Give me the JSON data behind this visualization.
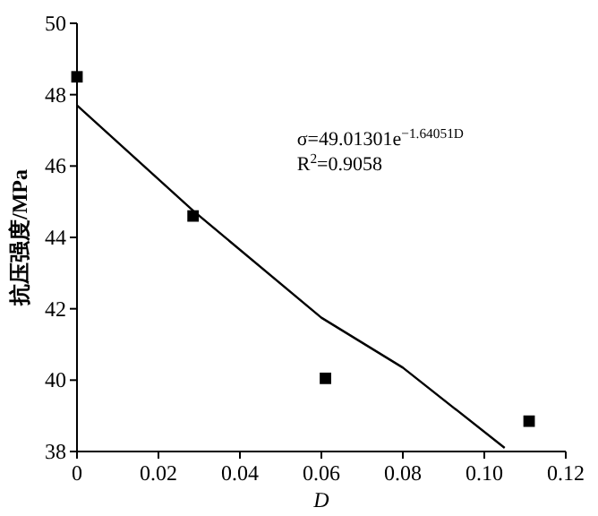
{
  "chart_data": {
    "type": "scatter",
    "xlabel": "D",
    "ylabel": "抗压强度/MPa",
    "xlim": [
      0,
      0.12
    ],
    "ylim": [
      38,
      50
    ],
    "xticks": [
      0,
      {
        "value": 0.02,
        "label": "0.02"
      },
      {
        "value": 0.04,
        "label": "0.04"
      },
      {
        "value": 0.06,
        "label": "0.06"
      },
      {
        "value": 0.08,
        "label": "0.08"
      },
      {
        "value": 0.1,
        "label": "0.10"
      },
      {
        "value": 0.12,
        "label": "0.12"
      }
    ],
    "yticks": [
      38,
      40,
      42,
      44,
      46,
      48,
      50
    ],
    "grid": false,
    "series": [
      {
        "color": "#000000",
        "marker": "square",
        "x": [
          0,
          0.0285,
          0.061,
          0.111
        ],
        "values": [
          48.5,
          44.6,
          40.05,
          38.85
        ]
      },
      {
        "type": "line",
        "color": "#000000",
        "marker": "none",
        "line_style": "solid",
        "x": [
          0,
          0.0285,
          0.06,
          0.08,
          0.105
        ],
        "values": [
          47.7,
          44.75,
          41.75,
          40.35,
          38.1
        ]
      }
    ],
    "annotations": [
      "σ=49.01301e$^{−1.64051D}$",
      "R$^{2}$=0.9058"
    ]
  }
}
